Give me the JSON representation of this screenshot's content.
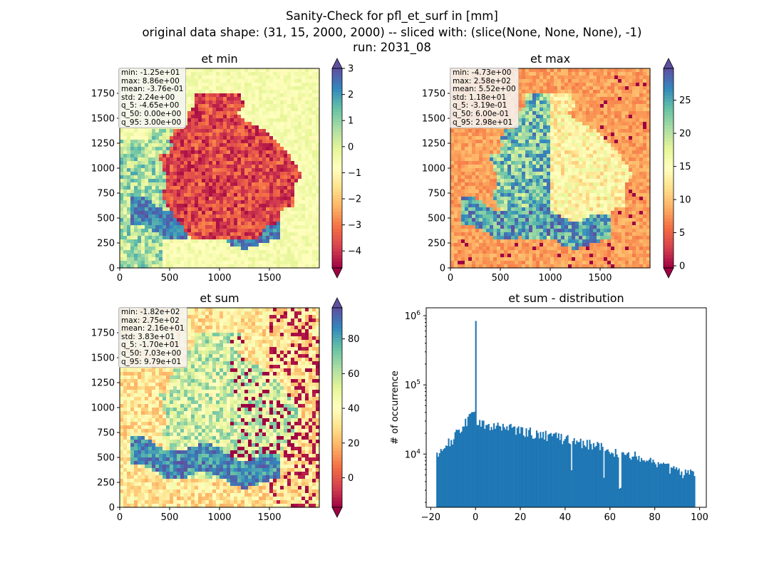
{
  "figure": {
    "title_lines": [
      "Sanity-Check for pfl_et_surf in [mm]",
      "original data shape: (31, 15, 2000, 2000) -- sliced with: (slice(None, None, None), -1)",
      "run: 2031_08"
    ]
  },
  "colors": {
    "hist_bar": "#1f77b4",
    "cmap": "Spectral",
    "cmap_stops": [
      "#9e0142",
      "#d53e4f",
      "#f46d43",
      "#fdae61",
      "#fee08b",
      "#ffffbf",
      "#e6f598",
      "#abdda4",
      "#66c2a5",
      "#3288bd",
      "#5e4fa2"
    ]
  },
  "chart_data": [
    {
      "type": "heatmap",
      "title": "et min",
      "xlim": [
        0,
        2000
      ],
      "ylim": [
        0,
        2000
      ],
      "xticks": [
        0,
        500,
        1000,
        1500
      ],
      "yticks": [
        0,
        250,
        500,
        750,
        1000,
        1250,
        1500,
        1750
      ],
      "colorbar": {
        "ticks": [
          3,
          2,
          1,
          0,
          -1,
          -2,
          -3,
          -4
        ],
        "tick_labels": [
          "3",
          "2",
          "1",
          "0",
          "−1",
          "−2",
          "−3",
          "−4"
        ],
        "vmin": -4.65,
        "vmax": 3.0
      },
      "stats": [
        "min: -1.25e+01",
        "max: 8.86e+00",
        "mean: -3.76e-01",
        "std: 2.24e+00",
        "q_5: -4.65e+00",
        "q_50: 0.00e+00",
        "q_95: 3.00e+00"
      ]
    },
    {
      "type": "heatmap",
      "title": "et max",
      "xlim": [
        0,
        2000
      ],
      "ylim": [
        0,
        2000
      ],
      "xticks": [
        0,
        500,
        1000,
        1500
      ],
      "yticks": [
        0,
        250,
        500,
        750,
        1000,
        1250,
        1500,
        1750
      ],
      "colorbar": {
        "ticks": [
          25,
          20,
          15,
          10,
          5,
          0
        ],
        "tick_labels": [
          "25",
          "20",
          "15",
          "10",
          "5",
          "0"
        ],
        "vmin": -0.319,
        "vmax": 29.8
      },
      "stats": [
        "min: -4.73e+00",
        "max: 2.58e+02",
        "mean: 5.52e+00",
        "std: 1.18e+01",
        "q_5: -3.19e-01",
        "q_50: 6.00e-01",
        "q_95: 2.98e+01"
      ]
    },
    {
      "type": "heatmap",
      "title": "et sum",
      "xlim": [
        0,
        2000
      ],
      "ylim": [
        0,
        2000
      ],
      "xticks": [
        0,
        500,
        1000,
        1500
      ],
      "yticks": [
        0,
        250,
        500,
        750,
        1000,
        1250,
        1500,
        1750
      ],
      "colorbar": {
        "ticks": [
          80,
          60,
          40,
          20,
          0
        ],
        "tick_labels": [
          "80",
          "60",
          "40",
          "20",
          "0"
        ],
        "vmin": -17.0,
        "vmax": 97.9
      },
      "stats": [
        "min: -1.82e+02",
        "max: 2.75e+02",
        "mean: 2.16e+01",
        "std: 3.83e+01",
        "q_5: -1.70e+01",
        "q_50: 7.03e+00",
        "q_95: 9.79e+01"
      ]
    },
    {
      "type": "bar",
      "title": "et sum - distribution",
      "ylabel": "# of occurrence",
      "xlabel": "",
      "yscale": "log",
      "xlim": [
        -22,
        103
      ],
      "ylim": [
        1700,
        1300000
      ],
      "xticks": [
        -20,
        0,
        20,
        40,
        60,
        80,
        100
      ],
      "xtick_labels": [
        "−20",
        "0",
        "20",
        "40",
        "60",
        "80",
        "100"
      ],
      "yticks": [
        10000,
        100000,
        1000000
      ],
      "ytick_labels": [
        "10^4",
        "10^5",
        "10^6"
      ],
      "bin_range": [
        -17.5,
        98.0
      ],
      "bin_count": 200,
      "spike": {
        "x": 0,
        "value": 840000
      },
      "profile": [
        [
          -17.5,
          9000
        ],
        [
          -10,
          17000
        ],
        [
          -1,
          38000
        ],
        [
          1,
          27000
        ],
        [
          10,
          25000
        ],
        [
          20,
          22000
        ],
        [
          30,
          19000
        ],
        [
          40,
          16500
        ],
        [
          50,
          14000
        ],
        [
          60,
          11500
        ],
        [
          70,
          9500
        ],
        [
          80,
          7500
        ],
        [
          90,
          5500
        ],
        [
          98,
          5000
        ]
      ]
    }
  ]
}
